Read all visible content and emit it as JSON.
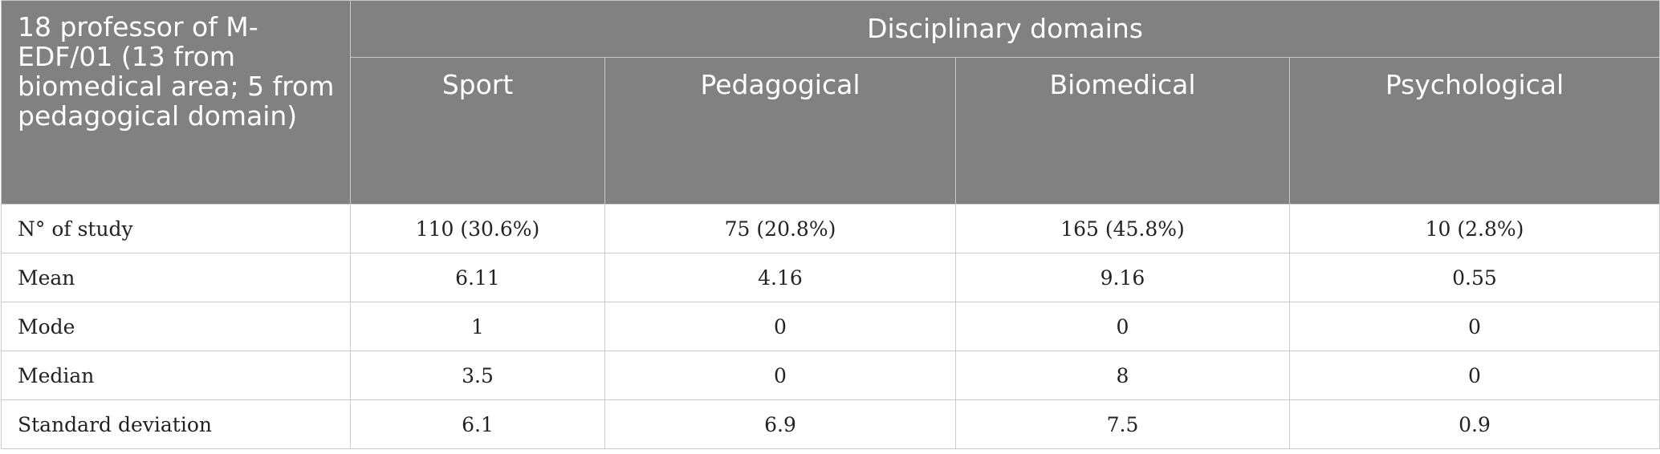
{
  "table": {
    "corner_header": "18 professor of M-EDF/01 (13 from biomedical area; 5 from pedagogical domain)",
    "group_header": "Disciplinary domains",
    "columns": [
      "Sport",
      "Pedagogical",
      "Biomedical",
      "Psychological"
    ],
    "rows": [
      {
        "label": "N° of study",
        "values": [
          "110 (30.6%)",
          "75 (20.8%)",
          "165 (45.8%)",
          "10 (2.8%)"
        ]
      },
      {
        "label": "Mean",
        "values": [
          "6.11",
          "4.16",
          "9.16",
          "0.55"
        ]
      },
      {
        "label": "Mode",
        "values": [
          "1",
          "0",
          "0",
          "0"
        ]
      },
      {
        "label": "Median",
        "values": [
          "3.5",
          "0",
          "8",
          "0"
        ]
      },
      {
        "label": "Standard deviation",
        "values": [
          "6.1",
          "6.9",
          "7.5",
          "0.9"
        ]
      }
    ]
  }
}
